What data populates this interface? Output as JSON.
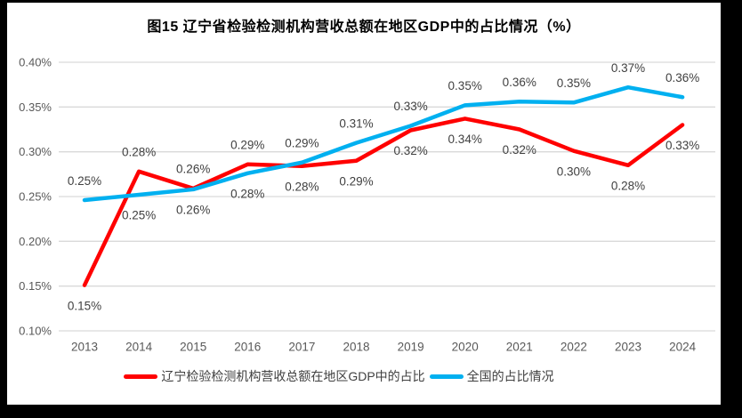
{
  "title": "图15 辽宁省检验检测机构营收总额在地区GDP中的占比情况（%）",
  "colors": {
    "frame": "#000000",
    "background": "#ffffff",
    "gridline": "#d9d9d9",
    "axis_text": "#595959",
    "data_label_text": "#404040",
    "title_text": "#000000"
  },
  "chart_data": {
    "type": "line",
    "title": "图15 辽宁省检验检测机构营收总额在地区GDP中的占比情况（%）",
    "categories": [
      "2013",
      "2014",
      "2015",
      "2016",
      "2017",
      "2018",
      "2019",
      "2020",
      "2021",
      "2022",
      "2023",
      "2024"
    ],
    "series": [
      {
        "name": "辽宁检验检测机构营收总额在地区GDP中的占比",
        "color": "#ff0000",
        "values": [
          0.15,
          0.28,
          0.26,
          0.29,
          0.28,
          0.29,
          0.32,
          0.34,
          0.32,
          0.3,
          0.28,
          0.33
        ],
        "labels": [
          "0.15%",
          "0.28%",
          "0.26%",
          "0.29%",
          "0.28%",
          "0.29%",
          "0.32%",
          "0.34%",
          "0.32%",
          "0.30%",
          "0.28%",
          "0.33%"
        ],
        "label_position": [
          "below",
          "above",
          "above",
          "above",
          "below",
          "below",
          "below",
          "below",
          "below",
          "below",
          "below",
          "below"
        ],
        "plot_values": [
          0.151,
          0.278,
          0.259,
          0.286,
          0.284,
          0.29,
          0.324,
          0.337,
          0.325,
          0.301,
          0.285,
          0.33
        ]
      },
      {
        "name": "全国的占比情况",
        "color": "#00b0f0",
        "values": [
          0.25,
          0.25,
          0.26,
          0.28,
          0.29,
          0.31,
          0.33,
          0.35,
          0.36,
          0.35,
          0.37,
          0.36
        ],
        "labels": [
          "0.25%",
          "0.25%",
          "0.26%",
          "0.28%",
          "0.29%",
          "0.31%",
          "0.33%",
          "0.35%",
          "0.36%",
          "0.35%",
          "0.37%",
          "0.36%"
        ],
        "label_position": [
          "above",
          "below",
          "below",
          "below",
          "above",
          "above",
          "above",
          "above",
          "above",
          "above",
          "above",
          "above"
        ],
        "plot_values": [
          0.246,
          0.252,
          0.258,
          0.276,
          0.288,
          0.31,
          0.329,
          0.352,
          0.356,
          0.355,
          0.372,
          0.361
        ]
      }
    ],
    "y_axis": {
      "ticks": [
        "0.40%",
        "0.35%",
        "0.30%",
        "0.25%",
        "0.20%",
        "0.15%",
        "0.10%"
      ],
      "min": 0.1,
      "max": 0.4,
      "step": 0.05
    },
    "xlabel": "",
    "ylabel": "",
    "grid": true,
    "legend_position": "bottom"
  }
}
